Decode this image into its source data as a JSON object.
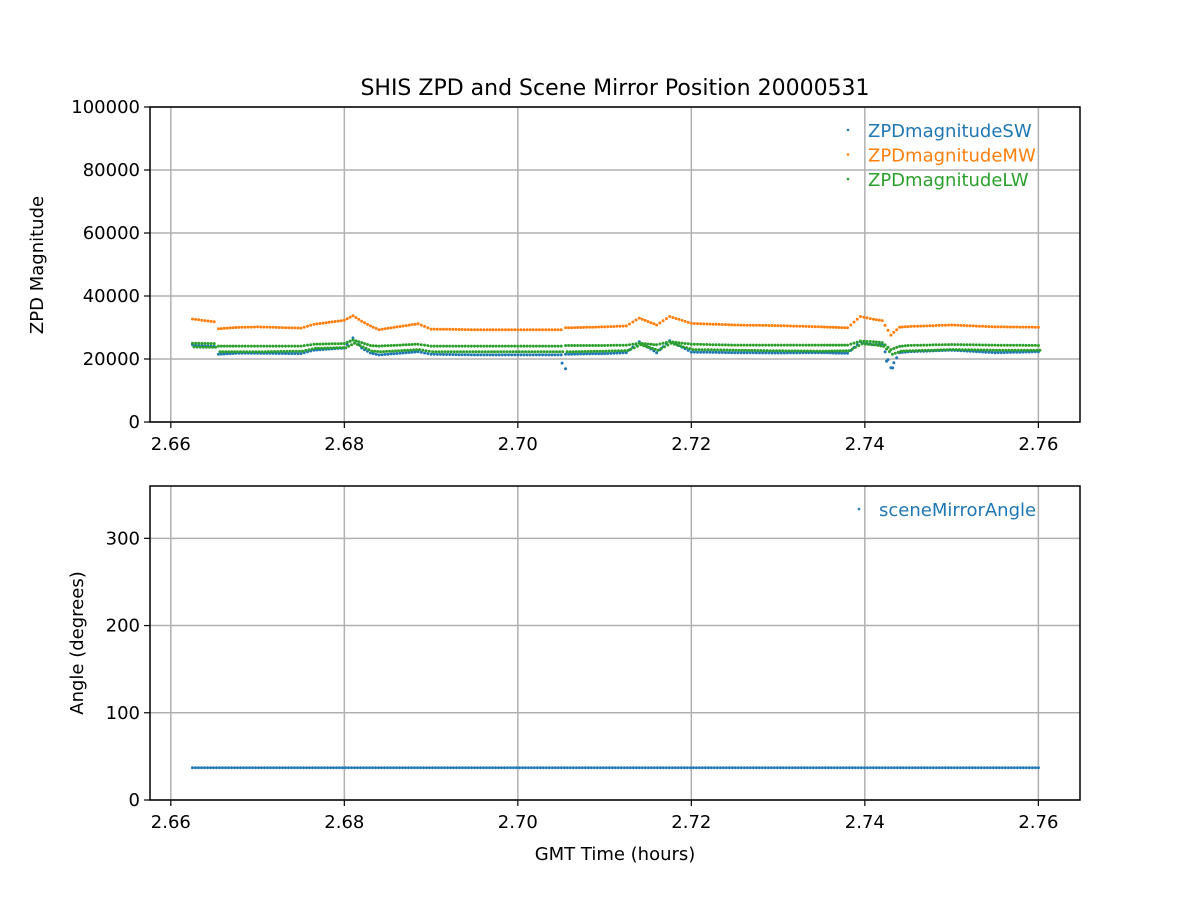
{
  "title": "SHIS ZPD and Scene Mirror Position 20000531",
  "chart_data": [
    {
      "type": "scatter",
      "title": "SHIS ZPD and Scene Mirror Position 20000531",
      "xlabel": "",
      "ylabel": "ZPD Magnitude",
      "xlim": [
        2.6576,
        2.7648
      ],
      "ylim": [
        0,
        100000
      ],
      "xticks": [
        "2.66",
        "2.68",
        "2.70",
        "2.72",
        "2.74",
        "2.76"
      ],
      "xtick_values": [
        2.66,
        2.68,
        2.7,
        2.72,
        2.74,
        2.76
      ],
      "yticks": [
        "0",
        "20000",
        "40000",
        "60000",
        "80000",
        "100000"
      ],
      "ytick_values": [
        0,
        20000,
        40000,
        60000,
        80000,
        100000
      ],
      "grid": true,
      "legend_position": "top-right",
      "x": [
        2.6625,
        2.665,
        2.6655,
        2.6675,
        2.67,
        2.675,
        2.6765,
        2.68,
        2.681,
        2.682,
        2.683,
        2.684,
        2.6885,
        2.69,
        2.695,
        2.7,
        2.705,
        2.7055,
        2.71,
        2.7125,
        2.714,
        2.716,
        2.7175,
        2.72,
        2.725,
        2.73,
        2.735,
        2.738,
        2.7395,
        2.741,
        2.742,
        2.743,
        2.744,
        2.745,
        2.75,
        2.755,
        2.76
      ],
      "series": [
        {
          "name": "ZPDmagnitudeSW",
          "color": "#1f77b4",
          "values": [
            24500,
            24000,
            21500,
            21800,
            21800,
            21700,
            22800,
            23500,
            26700,
            23500,
            21900,
            21300,
            22300,
            21500,
            21300,
            21300,
            21300,
            21500,
            21700,
            22000,
            25500,
            22000,
            25800,
            22200,
            22000,
            21900,
            22000,
            21800,
            25500,
            24500,
            24800,
            17200,
            22000,
            22300,
            22800,
            22000,
            22300
          ],
          "outliers": [
            [
              2.7051,
              18700
            ],
            [
              2.7055,
              16900
            ],
            [
              2.7425,
              19300
            ],
            [
              2.7432,
              17200
            ]
          ]
        },
        {
          "name": "ZPDmagnitudeMW",
          "color": "#ff7f0e",
          "values": [
            32700,
            31800,
            29600,
            30000,
            30200,
            29800,
            31000,
            32300,
            33700,
            32000,
            30500,
            29300,
            31200,
            29500,
            29300,
            29300,
            29300,
            29900,
            30200,
            30500,
            33000,
            30800,
            33500,
            31300,
            30800,
            30600,
            30200,
            29900,
            33500,
            32600,
            32200,
            27600,
            30100,
            30300,
            30800,
            30200,
            30100
          ]
        },
        {
          "name": "ZPDmagnitudeLW",
          "color": "#2ca02c",
          "values": [
            25000,
            24900,
            24100,
            24100,
            24100,
            24100,
            24700,
            24900,
            26000,
            25200,
            24300,
            24100,
            24700,
            24100,
            24100,
            24100,
            24100,
            24300,
            24300,
            24400,
            25000,
            24500,
            25500,
            24700,
            24400,
            24400,
            24400,
            24400,
            25700,
            25500,
            25200,
            23000,
            24000,
            24300,
            24600,
            24400,
            24300
          ],
          "values_alt": [
            23800,
            23700,
            22300,
            22300,
            22300,
            22500,
            23400,
            23600,
            25000,
            23800,
            22500,
            22300,
            23000,
            22300,
            22300,
            22300,
            22300,
            22300,
            22500,
            22700,
            24500,
            22800,
            25000,
            23000,
            22800,
            22600,
            22500,
            22600,
            24800,
            24500,
            24000,
            21500,
            22500,
            22600,
            23000,
            22800,
            22800
          ]
        }
      ]
    },
    {
      "type": "scatter",
      "xlabel": "GMT Time (hours)",
      "ylabel": "Angle (degrees)",
      "xlim": [
        2.6576,
        2.7648
      ],
      "ylim": [
        0,
        360
      ],
      "xticks": [
        "2.66",
        "2.68",
        "2.70",
        "2.72",
        "2.74",
        "2.76"
      ],
      "xtick_values": [
        2.66,
        2.68,
        2.7,
        2.72,
        2.74,
        2.76
      ],
      "yticks": [
        "0",
        "100",
        "200",
        "300"
      ],
      "ytick_values": [
        0,
        100,
        200,
        300
      ],
      "grid": true,
      "legend_position": "top-right",
      "x": [
        2.6625,
        2.76
      ],
      "series": [
        {
          "name": "sceneMirrorAngle",
          "color": "#1f77b4",
          "values": [
            37,
            37
          ]
        }
      ]
    }
  ]
}
